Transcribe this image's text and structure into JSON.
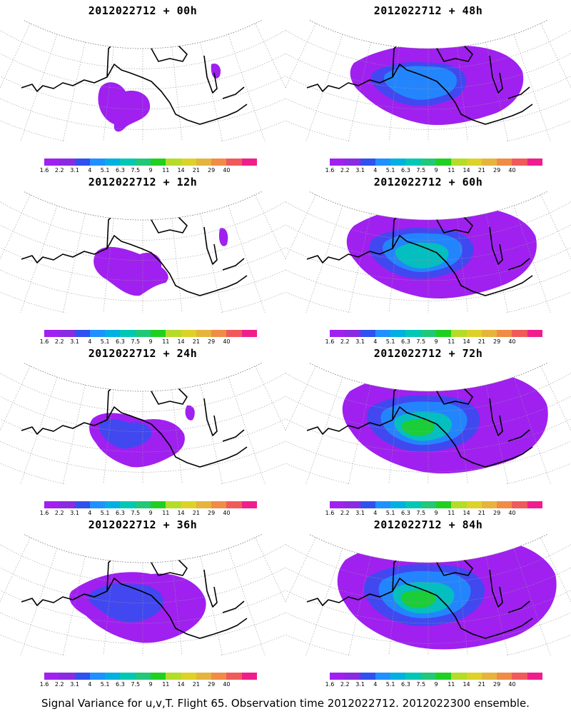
{
  "panels": [
    {
      "title": "2012022712 + 00h",
      "level": 0
    },
    {
      "title": "2012022712 + 12h",
      "level": 1
    },
    {
      "title": "2012022712 + 24h",
      "level": 2
    },
    {
      "title": "2012022712 + 36h",
      "level": 3
    },
    {
      "title": "2012022712 + 48h",
      "level": 4
    },
    {
      "title": "2012022712 + 60h",
      "level": 5
    },
    {
      "title": "2012022712 + 72h",
      "level": 6
    },
    {
      "title": "2012022712 + 84h",
      "level": 7
    }
  ],
  "colorbar": {
    "labels": [
      "1.6",
      "2.2",
      "3.1",
      "4",
      "5.1",
      "6.3",
      "7.5",
      "9",
      "11",
      "14",
      "21",
      "29",
      "40"
    ],
    "colors": [
      "#a020f0",
      "#8a2be2",
      "#3050f0",
      "#1e90ff",
      "#00b0e0",
      "#00c8b4",
      "#20c878",
      "#20d020",
      "#b4dc28",
      "#dcd228",
      "#e6b43c",
      "#f08c46",
      "#f05a5a",
      "#f01e8c"
    ]
  },
  "caption": "Signal Variance for u,v,T. Flight 65. Observation time 2012022712. 2012022300 ensemble."
}
